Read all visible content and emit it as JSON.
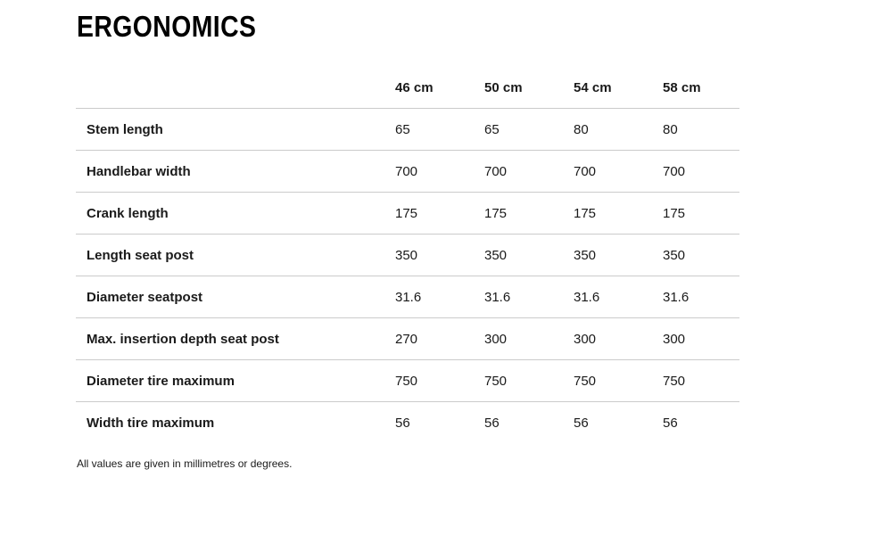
{
  "page": {
    "title": "ERGONOMICS",
    "footnote": "All values are given in millimetres or degrees."
  },
  "table": {
    "columns": [
      "46 cm",
      "50 cm",
      "54 cm",
      "58 cm"
    ],
    "rows": [
      {
        "label": "Stem length",
        "values": [
          "65",
          "65",
          "80",
          "80"
        ]
      },
      {
        "label": "Handlebar width",
        "values": [
          "700",
          "700",
          "700",
          "700"
        ]
      },
      {
        "label": "Crank length",
        "values": [
          "175",
          "175",
          "175",
          "175"
        ]
      },
      {
        "label": "Length seat post",
        "values": [
          "350",
          "350",
          "350",
          "350"
        ]
      },
      {
        "label": "Diameter seatpost",
        "values": [
          "31.6",
          "31.6",
          "31.6",
          "31.6"
        ]
      },
      {
        "label": "Max. insertion depth seat post",
        "values": [
          "270",
          "300",
          "300",
          "300"
        ]
      },
      {
        "label": "Diameter tire maximum",
        "values": [
          "750",
          "750",
          "750",
          "750"
        ]
      },
      {
        "label": "Width tire maximum",
        "values": [
          "56",
          "56",
          "56",
          "56"
        ]
      }
    ]
  },
  "colors": {
    "background": "#ffffff",
    "title_text": "#000000",
    "body_text": "#1a1a1a",
    "divider": "#cbcbcb"
  }
}
